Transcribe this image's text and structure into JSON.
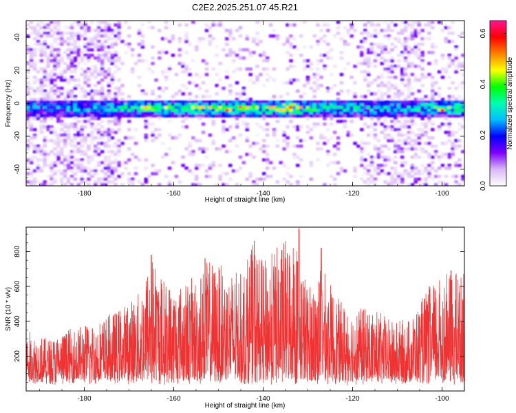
{
  "title": "C2E2.2025.251.07.45.R21",
  "chart_data": [
    {
      "type": "heatmap",
      "title": "C2E2.2025.251.07.45.R21",
      "xlabel": "Height of straight line (km)",
      "ylabel": "Frequency (Hz)",
      "xlim": [
        -193,
        -95
      ],
      "ylim": [
        -50,
        50
      ],
      "xticks": [
        -180,
        -160,
        -140,
        -120,
        -100
      ],
      "yticks": [
        -40,
        -20,
        0,
        20,
        40
      ],
      "colorbar": {
        "label": "Normalized spectral amplitude",
        "range": [
          0.0,
          0.65
        ],
        "ticks": [
          0.0,
          0.2,
          0.4,
          0.6
        ],
        "colormap": [
          "#ffffff",
          "#d9b8f5",
          "#8000ff",
          "#0000ff",
          "#00bfff",
          "#00ffb0",
          "#00ff00",
          "#ffff00",
          "#ff8000",
          "#ff0000",
          "#ff1493"
        ]
      },
      "band": {
        "center_hz": -3,
        "width_hz": 8,
        "peak_amplitude": 0.62
      },
      "features": [
        {
          "x": -166,
          "y": -3,
          "amplitude": 0.55
        },
        {
          "x": -148,
          "y": -4,
          "amplitude": 0.62
        },
        {
          "x": -145,
          "y": -3,
          "amplitude": 0.6
        },
        {
          "x": -138,
          "y": -3,
          "amplitude": 0.6
        },
        {
          "x": -100,
          "y": -4,
          "amplitude": 0.6
        }
      ]
    },
    {
      "type": "line",
      "xlabel": "Height of straight line (km)",
      "ylabel": "SNR (10 * v/v)",
      "xlim": [
        -193,
        -95
      ],
      "ylim": [
        0,
        940
      ],
      "xticks": [
        -180,
        -160,
        -140,
        -120,
        -100
      ],
      "yticks": [
        200,
        400,
        600,
        800
      ],
      "line_color": "#f03232",
      "envelope": {
        "x": [
          -193,
          -188,
          -183,
          -178,
          -173,
          -168,
          -165,
          -162,
          -158,
          -155,
          -152,
          -148,
          -145,
          -142,
          -140,
          -137,
          -133,
          -130,
          -127,
          -123,
          -119,
          -115,
          -111,
          -107,
          -103,
          -100,
          -97,
          -95
        ],
        "y_max": [
          350,
          300,
          360,
          400,
          460,
          560,
          790,
          640,
          620,
          670,
          760,
          700,
          680,
          860,
          740,
          830,
          930,
          600,
          720,
          520,
          480,
          470,
          400,
          420,
          600,
          660,
          690,
          680
        ]
      },
      "peaks": [
        {
          "x": -165,
          "y": 780
        },
        {
          "x": -153,
          "y": 760
        },
        {
          "x": -142,
          "y": 860
        },
        {
          "x": -132,
          "y": 930
        },
        {
          "x": -127,
          "y": 820
        },
        {
          "x": -98,
          "y": 690
        }
      ]
    }
  ]
}
